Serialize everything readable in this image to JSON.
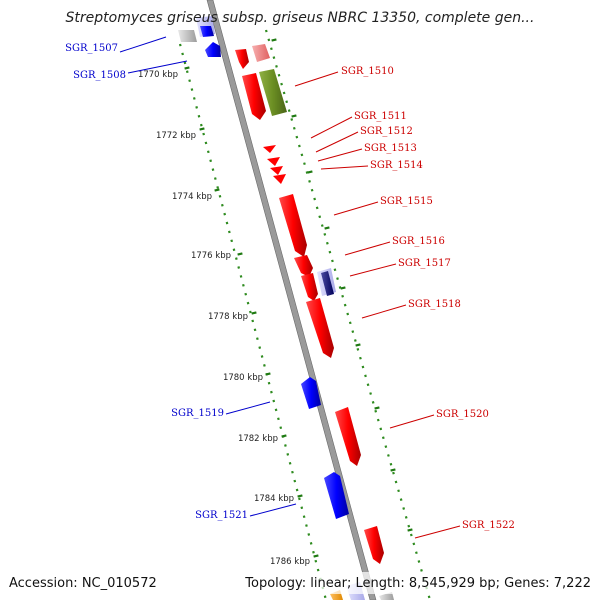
{
  "title": "Streptomyces griseus subsp. griseus NBRC 13350, complete gen...",
  "accession": "Accession: NC_010572",
  "summary": "Topology: linear; Length: 8,545,929 bp; Genes: 7,222",
  "colors": {
    "forward": "#ff0000",
    "reverse": "#0000ff",
    "rna": "#6b8e23",
    "pseudo": "#f08080",
    "other": "#c0c0c0",
    "axis": "#888888",
    "dots": "#2e8b1f"
  },
  "scale_labels": [
    "1770 kbp",
    "1772 kbp",
    "1774 kbp",
    "1776 kbp",
    "1778 kbp",
    "1780 kbp",
    "1782 kbp",
    "1784 kbp",
    "1786 kbp"
  ],
  "gene_labels_forward": [
    "SGR_1510",
    "SGR_1511",
    "SGR_1512",
    "SGR_1513",
    "SGR_1514",
    "SGR_1515",
    "SGR_1516",
    "SGR_1517",
    "SGR_1518",
    "SGR_1520",
    "SGR_1522"
  ],
  "gene_labels_reverse": [
    "SGR_1507",
    "SGR_1508",
    "SGR_1519",
    "SGR_1521"
  ]
}
